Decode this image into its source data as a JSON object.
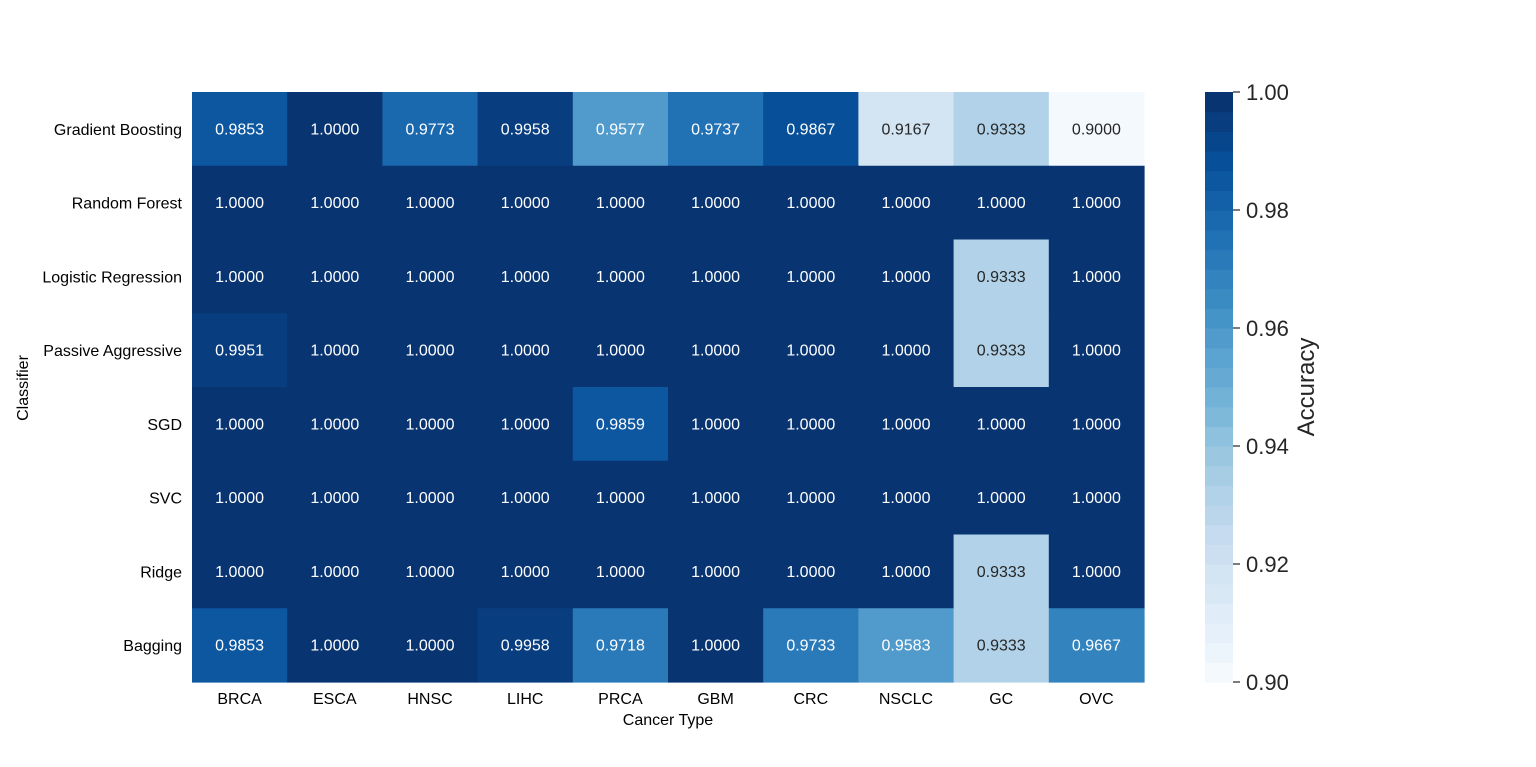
{
  "chart_data": {
    "type": "heatmap",
    "title": "",
    "xlabel": "Cancer Type",
    "ylabel": "Classifier",
    "x_categories": [
      "BRCA",
      "ESCA",
      "HNSC",
      "LIHC",
      "PRCA",
      "GBM",
      "CRC",
      "NSCLC",
      "GC",
      "OVC"
    ],
    "y_categories": [
      "Gradient Boosting",
      "Random Forest",
      "Logistic Regression",
      "Passive Aggressive",
      "SGD",
      "SVC",
      "Ridge",
      "Bagging"
    ],
    "values": [
      [
        0.9853,
        1.0,
        0.9773,
        0.9958,
        0.9577,
        0.9737,
        0.9867,
        0.9167,
        0.9333,
        0.9
      ],
      [
        1.0,
        1.0,
        1.0,
        1.0,
        1.0,
        1.0,
        1.0,
        1.0,
        1.0,
        1.0
      ],
      [
        1.0,
        1.0,
        1.0,
        1.0,
        1.0,
        1.0,
        1.0,
        1.0,
        0.9333,
        1.0
      ],
      [
        0.9951,
        1.0,
        1.0,
        1.0,
        1.0,
        1.0,
        1.0,
        1.0,
        0.9333,
        1.0
      ],
      [
        1.0,
        1.0,
        1.0,
        1.0,
        0.9859,
        1.0,
        1.0,
        1.0,
        1.0,
        1.0
      ],
      [
        1.0,
        1.0,
        1.0,
        1.0,
        1.0,
        1.0,
        1.0,
        1.0,
        1.0,
        1.0
      ],
      [
        1.0,
        1.0,
        1.0,
        1.0,
        1.0,
        1.0,
        1.0,
        1.0,
        0.9333,
        1.0
      ],
      [
        0.9853,
        1.0,
        1.0,
        0.9958,
        0.9718,
        1.0,
        0.9733,
        0.9583,
        0.9333,
        0.9667
      ]
    ],
    "value_format_decimals": 4,
    "colorbar": {
      "label": "Accuracy",
      "range": [
        0.9,
        1.0
      ],
      "ticks": [
        1.0,
        0.98,
        0.96,
        0.94,
        0.92,
        0.9
      ],
      "tick_labels": [
        "1.00",
        "0.98",
        "0.96",
        "0.94",
        "0.92",
        "0.90"
      ],
      "levels": 30,
      "colormap": "Blues",
      "color_stops": [
        "#f7fbff",
        "#deebf7",
        "#c6dbef",
        "#9ecae1",
        "#6baed6",
        "#4292c6",
        "#2171b5",
        "#08519c",
        "#08306b"
      ]
    },
    "grid": false,
    "legend": "colorbar-right"
  }
}
